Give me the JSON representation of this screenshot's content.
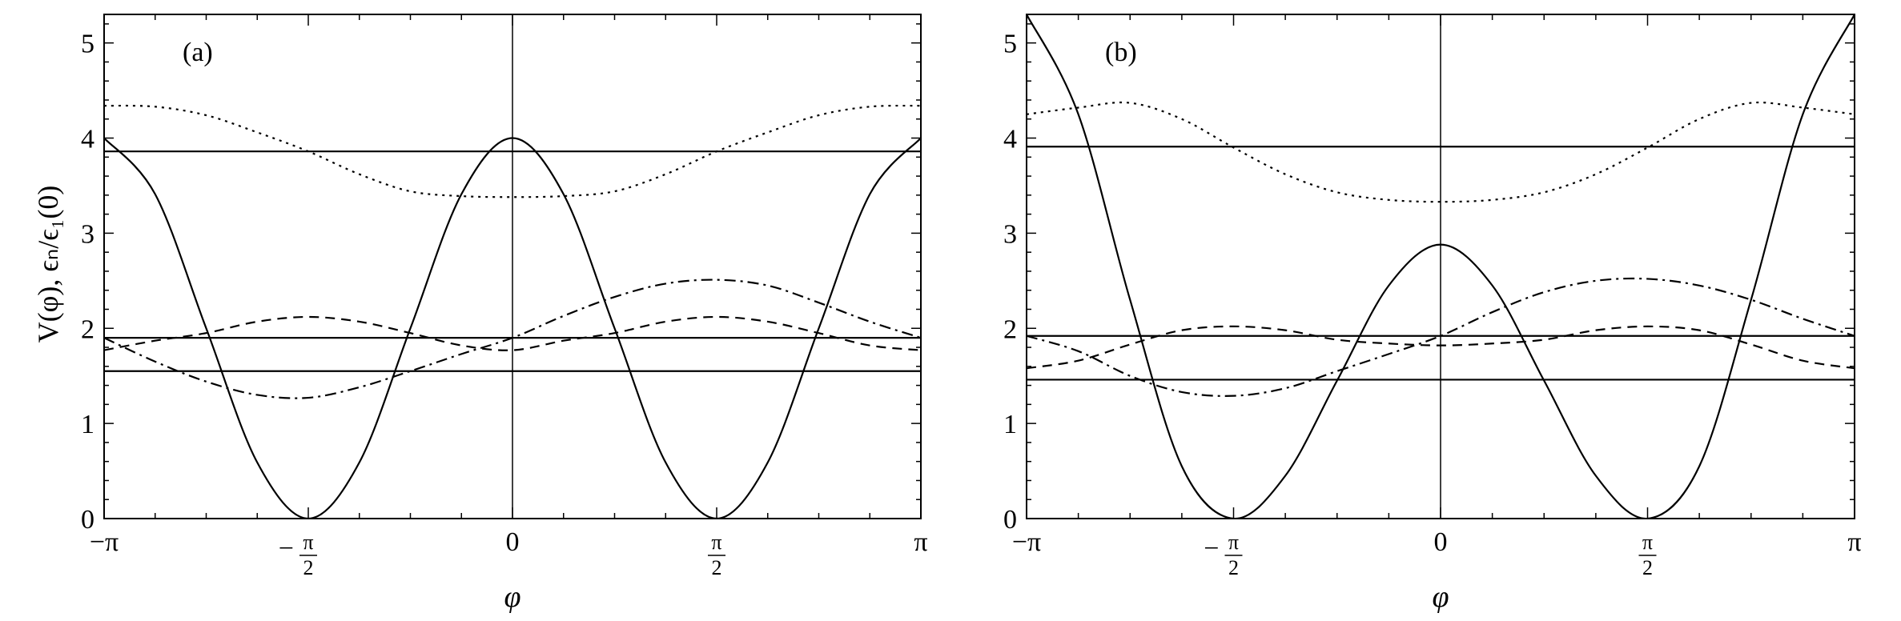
{
  "figure": {
    "ylabel": "V(φ), ϵₙ/ϵ₁(0)",
    "xlabel": "φ"
  },
  "chart_data": [
    {
      "type": "line",
      "panel_label": "(a)",
      "xlabel": "φ",
      "ylabel": "V(φ), ϵₙ/ϵ₁(0)",
      "xlim": [
        -3.14159,
        3.14159
      ],
      "ylim": [
        0,
        5.3
      ],
      "xticks": [
        {
          "value": -3.14159,
          "label": "−π"
        },
        {
          "value": -1.5708,
          "label": "−π/2"
        },
        {
          "value": 0,
          "label": "0"
        },
        {
          "value": 1.5708,
          "label": "π/2"
        },
        {
          "value": 3.14159,
          "label": "π"
        }
      ],
      "yticks": [
        0,
        1,
        2,
        3,
        4,
        5
      ],
      "series": [
        {
          "style": "solid",
          "x": [
            -3.14159,
            -2.7489,
            -2.3562,
            -1.9635,
            -1.5708,
            -1.1781,
            -0.7854,
            -0.3927,
            0,
            0.3927,
            0.7854,
            1.1781,
            1.5708,
            1.9635,
            2.3562,
            2.7489,
            3.14159
          ],
          "y": [
            4.0,
            3.41,
            2.0,
            0.59,
            0.0,
            0.59,
            2.0,
            3.41,
            4.0,
            3.41,
            2.0,
            0.59,
            0.0,
            0.59,
            2.0,
            3.41,
            4.0
          ]
        },
        {
          "style": "solid",
          "x": [
            -3.14159,
            3.14159
          ],
          "y": [
            1.55,
            1.55
          ]
        },
        {
          "style": "solid",
          "x": [
            -3.14159,
            3.14159
          ],
          "y": [
            1.9,
            1.9
          ]
        },
        {
          "style": "solid",
          "x": [
            -3.14159,
            3.14159
          ],
          "y": [
            3.86,
            3.86
          ]
        },
        {
          "style": "dashed",
          "x": [
            -3.14159,
            -2.7489,
            -2.3562,
            -1.9635,
            -1.5708,
            -1.1781,
            -0.7854,
            -0.3927,
            0,
            0.3927,
            0.7854,
            1.1781,
            1.5708,
            1.9635,
            2.3562,
            2.7489,
            3.14159
          ],
          "y": [
            1.77,
            1.87,
            1.95,
            2.07,
            2.12,
            2.07,
            1.95,
            1.82,
            1.77,
            1.87,
            1.95,
            2.07,
            2.12,
            2.07,
            1.95,
            1.82,
            1.77
          ]
        },
        {
          "style": "dashdot",
          "x": [
            -3.14159,
            -2.7489,
            -2.3562,
            -1.9635,
            -1.5708,
            -1.1781,
            -0.7854,
            -0.3927,
            0,
            0.3927,
            0.7854,
            1.1781,
            1.5708,
            1.9635,
            2.3562,
            2.7489,
            3.14159
          ],
          "y": [
            1.9,
            1.65,
            1.44,
            1.3,
            1.27,
            1.38,
            1.55,
            1.73,
            1.9,
            2.13,
            2.33,
            2.47,
            2.51,
            2.45,
            2.27,
            2.07,
            1.9
          ]
        },
        {
          "style": "dotted",
          "x": [
            -3.14159,
            -2.7489,
            -2.3562,
            -1.9635,
            -1.5708,
            -1.1781,
            -0.7854,
            -0.3927,
            0,
            0.3927,
            0.7854,
            1.1781,
            1.5708,
            1.9635,
            2.3562,
            2.7489,
            3.14159
          ],
          "y": [
            4.34,
            4.33,
            4.24,
            4.06,
            3.86,
            3.62,
            3.44,
            3.39,
            3.38,
            3.39,
            3.44,
            3.62,
            3.86,
            4.06,
            4.24,
            4.33,
            4.34
          ]
        }
      ]
    },
    {
      "type": "line",
      "panel_label": "(b)",
      "xlabel": "φ",
      "ylabel": "",
      "xlim": [
        -3.14159,
        3.14159
      ],
      "ylim": [
        0,
        5.3
      ],
      "xticks": [
        {
          "value": -3.14159,
          "label": "−π"
        },
        {
          "value": -1.5708,
          "label": "−π/2"
        },
        {
          "value": 0,
          "label": "0"
        },
        {
          "value": 1.5708,
          "label": "π/2"
        },
        {
          "value": 3.14159,
          "label": "π"
        }
      ],
      "yticks": [
        0,
        1,
        2,
        3,
        4,
        5
      ],
      "series": [
        {
          "style": "solid",
          "x": [
            -3.14159,
            -2.7489,
            -2.3562,
            -1.9635,
            -1.5708,
            -1.1781,
            -0.7854,
            -0.3927,
            0,
            0.3927,
            0.7854,
            1.1781,
            1.5708,
            1.9635,
            2.3562,
            2.7489,
            3.14159
          ],
          "y": [
            5.3,
            4.25,
            2.3,
            0.55,
            0.0,
            0.45,
            1.45,
            2.45,
            2.88,
            2.45,
            1.45,
            0.45,
            0.0,
            0.55,
            2.3,
            4.25,
            5.3
          ]
        },
        {
          "style": "solid",
          "x": [
            -3.14159,
            3.14159
          ],
          "y": [
            1.46,
            1.46
          ]
        },
        {
          "style": "solid",
          "x": [
            -3.14159,
            3.14159
          ],
          "y": [
            1.92,
            1.92
          ]
        },
        {
          "style": "solid",
          "x": [
            -3.14159,
            3.14159
          ],
          "y": [
            3.91,
            3.91
          ]
        },
        {
          "style": "dashed",
          "x": [
            -3.14159,
            -2.7489,
            -2.3562,
            -1.9635,
            -1.5708,
            -1.1781,
            -0.7854,
            -0.3927,
            0,
            0.3927,
            0.7854,
            1.1781,
            1.5708,
            1.9635,
            2.3562,
            2.7489,
            3.14159
          ],
          "y": [
            1.58,
            1.66,
            1.83,
            1.98,
            2.02,
            1.98,
            1.88,
            1.84,
            1.82,
            1.84,
            1.88,
            1.98,
            2.02,
            1.98,
            1.83,
            1.66,
            1.58
          ]
        },
        {
          "style": "dashdot",
          "x": [
            -3.14159,
            -2.7489,
            -2.3562,
            -1.9635,
            -1.5708,
            -1.1781,
            -0.7854,
            -0.3927,
            0,
            0.3927,
            0.7854,
            1.1781,
            1.5708,
            1.9635,
            2.3562,
            2.7489,
            3.14159
          ],
          "y": [
            1.92,
            1.76,
            1.5,
            1.33,
            1.29,
            1.37,
            1.55,
            1.73,
            1.92,
            2.17,
            2.38,
            2.5,
            2.52,
            2.45,
            2.3,
            2.1,
            1.92
          ]
        },
        {
          "style": "dotted",
          "x": [
            -3.14159,
            -2.7489,
            -2.3562,
            -1.9635,
            -1.5708,
            -1.1781,
            -0.7854,
            -0.3927,
            0,
            0.3927,
            0.7854,
            1.1781,
            1.5708,
            1.9635,
            2.3562,
            2.7489,
            3.14159
          ],
          "y": [
            4.25,
            4.32,
            4.37,
            4.2,
            3.9,
            3.62,
            3.43,
            3.35,
            3.33,
            3.35,
            3.43,
            3.62,
            3.9,
            4.2,
            4.37,
            4.32,
            4.25
          ]
        }
      ]
    }
  ]
}
